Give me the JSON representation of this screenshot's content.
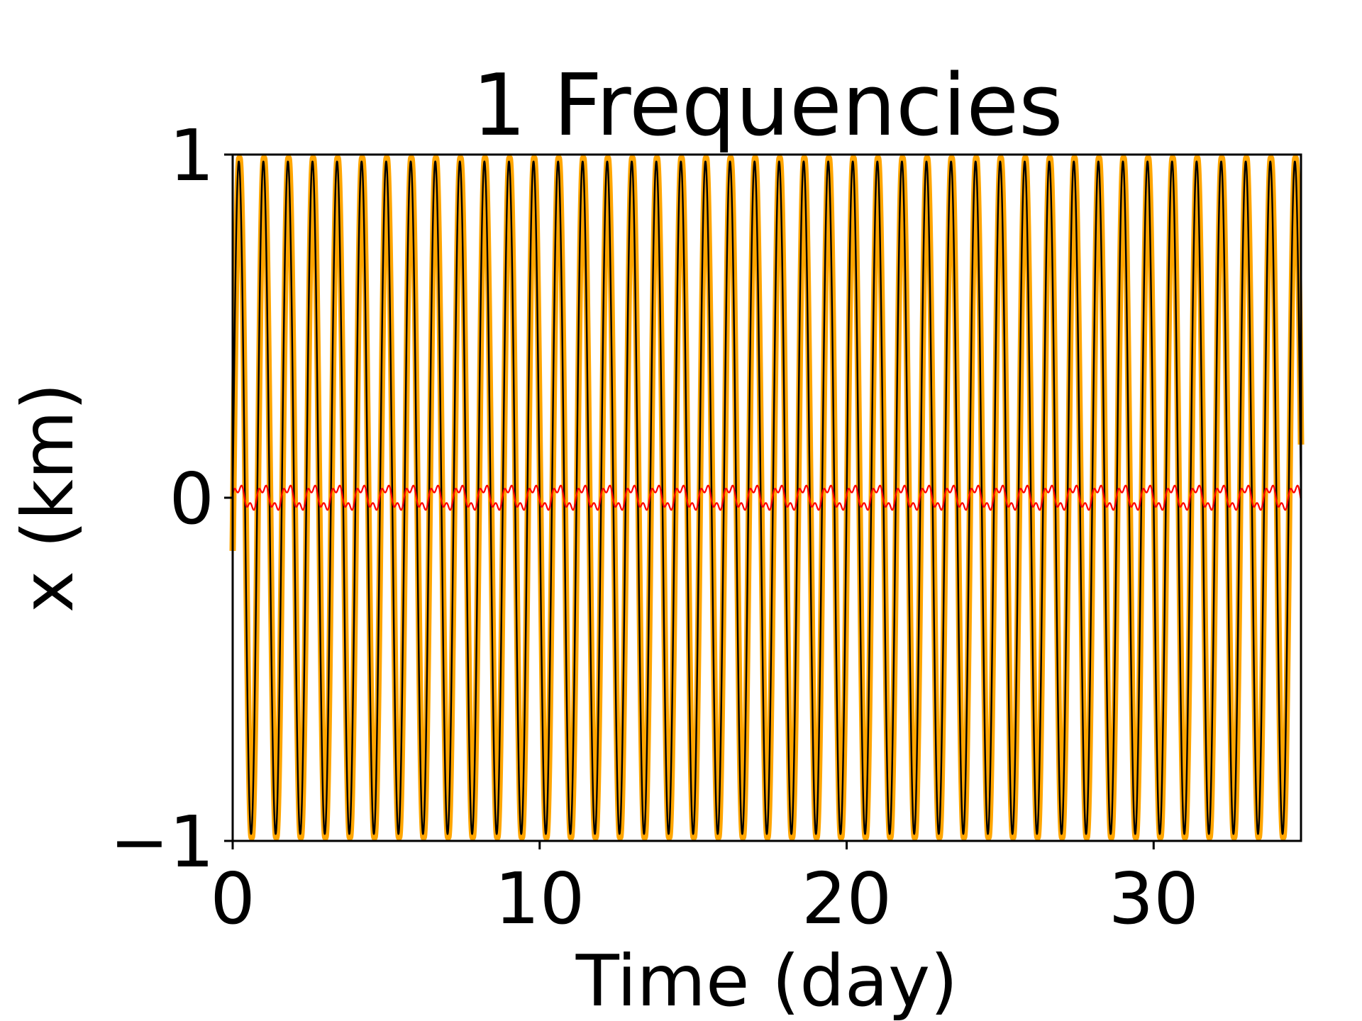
{
  "chart_data": {
    "type": "line",
    "title": "1 Frequencies",
    "xlabel": "Time (day)",
    "ylabel": "x (km)",
    "xlim": [
      0,
      34.8
    ],
    "ylim": [
      -1,
      1
    ],
    "xticks": [
      0,
      10,
      20,
      30
    ],
    "yticks": [
      -1,
      0,
      1
    ],
    "xtick_labels": [
      "0",
      "10",
      "20",
      "30"
    ],
    "ytick_labels": [
      "−1",
      "0",
      "1"
    ],
    "grid": false,
    "legend": "none",
    "series": [
      {
        "color": "#ffa500",
        "kind": "sinusoid",
        "amplitude": 0.99,
        "period_days": 0.8,
        "phase_days": 0.02
      },
      {
        "color": "#000000",
        "kind": "sinusoid",
        "amplitude": 0.98,
        "period_days": 0.8,
        "phase_days": 0.0
      },
      {
        "color": "#ff0000",
        "kind": "residual",
        "amplitude": 0.04,
        "period_days": 0.8
      }
    ]
  }
}
